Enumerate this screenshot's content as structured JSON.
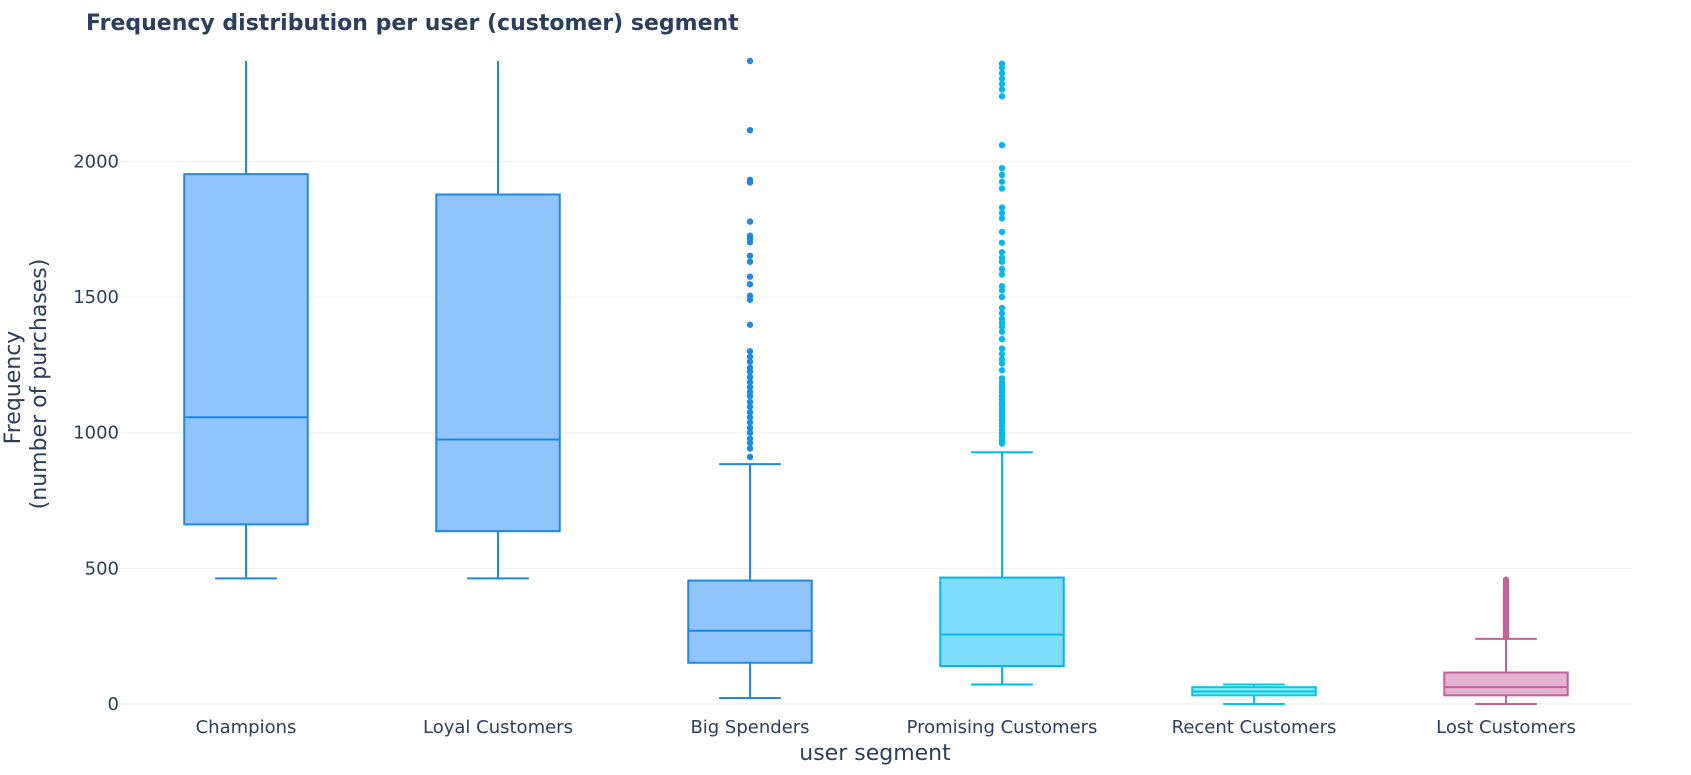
{
  "chart_data": {
    "type": "box",
    "title": "Frequency distribution per user (customer) segment",
    "xlabel": "user segment",
    "ylabel_lines": [
      "Frequency",
      "(number of purchases)"
    ],
    "ylim": [
      0,
      2370
    ],
    "y_ticks": [
      0,
      500,
      1000,
      1500,
      2000
    ],
    "grid": "horizontal",
    "legend": "none",
    "categories": [
      "Champions",
      "Loyal Customers",
      "Big Spenders",
      "Promising Customers",
      "Recent Customers",
      "Lost Customers"
    ],
    "series": [
      {
        "category": "Champions",
        "color": "#1e88e5",
        "fill": "#90c4fb",
        "lower_whisker": 463,
        "q1": 662,
        "median": 1057,
        "q3": 1953,
        "upper_whisker": 2370,
        "outliers": []
      },
      {
        "category": "Loyal Customers",
        "color": "#1e88e5",
        "fill": "#90c4fb",
        "lower_whisker": 463,
        "q1": 637,
        "median": 975,
        "q3": 1878,
        "upper_whisker": 2370,
        "outliers": []
      },
      {
        "category": "Big Spenders",
        "color": "#1e88e5",
        "fill": "#90c4fb",
        "lower_whisker": 22,
        "q1": 152,
        "median": 270,
        "q3": 455,
        "upper_whisker": 884,
        "outliers": [
          911,
          942,
          962,
          978,
          1000,
          1018,
          1038,
          1057,
          1075,
          1095,
          1113,
          1135,
          1150,
          1168,
          1186,
          1205,
          1225,
          1240,
          1262,
          1280,
          1300,
          1398,
          1490,
          1505,
          1547,
          1575,
          1630,
          1652,
          1702,
          1716,
          1726,
          1778,
          1922,
          1932,
          2115,
          2370
        ]
      },
      {
        "category": "Promising Customers",
        "color": "#00b8f0",
        "fill": "#7fdcfb",
        "lower_whisker": 72,
        "q1": 140,
        "median": 256,
        "q3": 466,
        "upper_whisker": 928,
        "outliers": [
          960,
          972,
          985,
          997,
          1010,
          1023,
          1035,
          1048,
          1060,
          1072,
          1085,
          1098,
          1110,
          1123,
          1135,
          1148,
          1160,
          1173,
          1185,
          1200,
          1230,
          1255,
          1270,
          1290,
          1310,
          1345,
          1372,
          1390,
          1405,
          1420,
          1440,
          1460,
          1500,
          1525,
          1540,
          1583,
          1603,
          1630,
          1645,
          1665,
          1700,
          1740,
          1790,
          1810,
          1830,
          1900,
          1925,
          1950,
          1975,
          2060,
          2240,
          2265,
          2285,
          2305,
          2325,
          2345,
          2360
        ]
      },
      {
        "category": "Recent Customers",
        "color": "#00c8e8",
        "fill": "#8fe6f5",
        "lower_whisker": 0,
        "q1": 32,
        "median": 46,
        "q3": 62,
        "upper_whisker": 72,
        "outliers": []
      },
      {
        "category": "Lost Customers",
        "color": "#c4609a",
        "fill": "#e2b2ce",
        "lower_whisker": 0,
        "q1": 32,
        "median": 62,
        "q3": 116,
        "upper_whisker": 240,
        "outliers": [
          248,
          256,
          264,
          272,
          280,
          288,
          296,
          304,
          312,
          320,
          328,
          336,
          344,
          352,
          360,
          368,
          376,
          384,
          392,
          400,
          410,
          420,
          430,
          440,
          450,
          458
        ]
      }
    ]
  }
}
